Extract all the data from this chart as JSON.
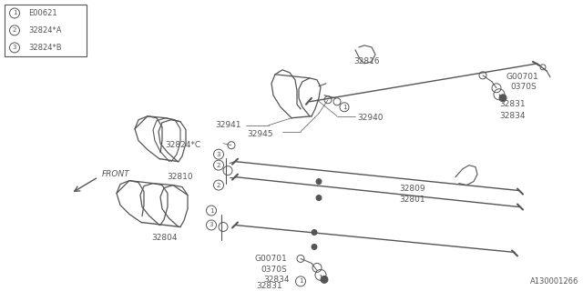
{
  "bg_color": "#ffffff",
  "line_color": "#555555",
  "diagram_id": "A130001266",
  "legend": [
    {
      "num": "1",
      "label": "E00621"
    },
    {
      "num": "2",
      "label": "32824*A"
    },
    {
      "num": "3",
      "label": "32824*B"
    }
  ]
}
